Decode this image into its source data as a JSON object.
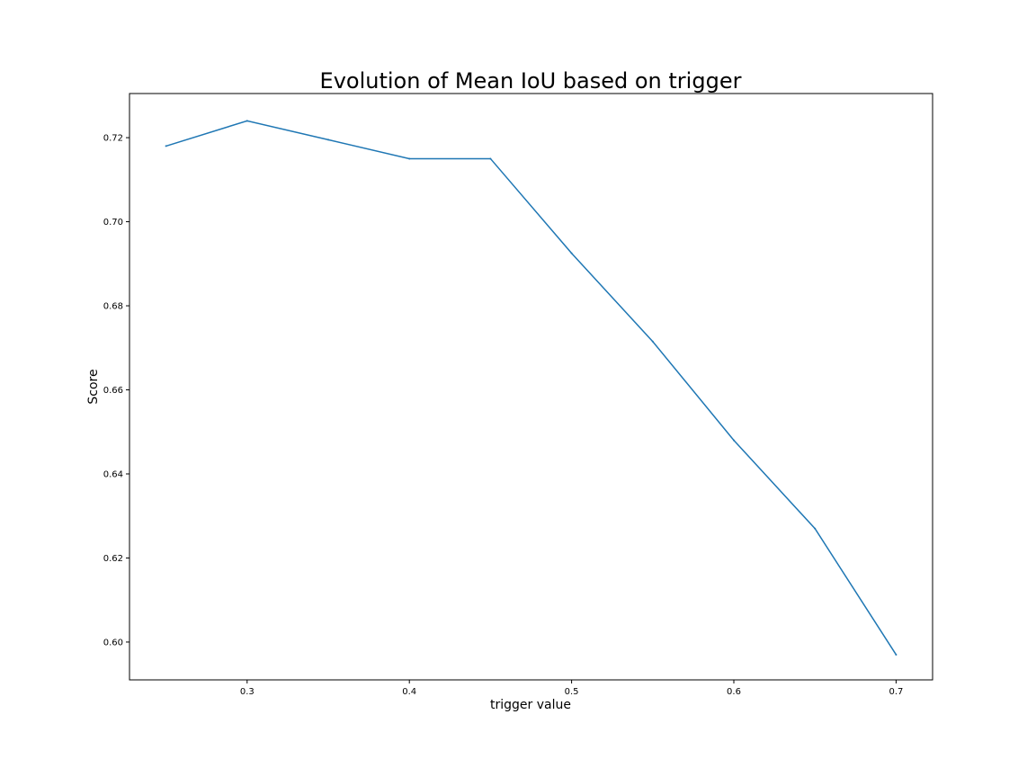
{
  "chart_data": {
    "type": "line",
    "title": "Evolution of Mean IoU based on trigger",
    "xlabel": "trigger value",
    "ylabel": "Score",
    "x": [
      0.25,
      0.3,
      0.35,
      0.4,
      0.45,
      0.5,
      0.55,
      0.6,
      0.65,
      0.7
    ],
    "series": [
      {
        "values": [
          0.718,
          0.724,
          0.7195,
          0.715,
          0.715,
          0.6925,
          0.6715,
          0.648,
          0.627,
          0.597
        ]
      }
    ],
    "xlim": [
      0.2275,
      0.7225
    ],
    "ylim": [
      0.591,
      0.7305
    ],
    "xticks": [
      0.3,
      0.4,
      0.5,
      0.6,
      0.7
    ],
    "xtick_labels": [
      "0.3",
      "0.4",
      "0.5",
      "0.6",
      "0.7"
    ],
    "yticks": [
      0.6,
      0.62,
      0.64,
      0.66,
      0.68,
      0.7,
      0.72
    ],
    "ytick_labels": [
      "0.60",
      "0.62",
      "0.64",
      "0.66",
      "0.68",
      "0.70",
      "0.72"
    ],
    "grid": false,
    "line_color": "#1f77b4"
  }
}
